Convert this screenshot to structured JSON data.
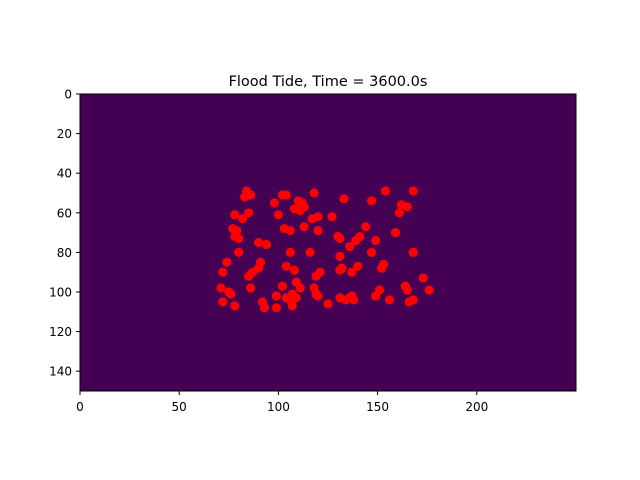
{
  "chart_data": {
    "type": "scatter",
    "title": "Flood Tide, Time = 3600.0s",
    "xlabel": "",
    "ylabel": "",
    "xlim": [
      0,
      250
    ],
    "ylim": [
      150,
      0
    ],
    "y_inverted": true,
    "background_field_color": "#440154",
    "marker_color": "#ff0000",
    "grid": false,
    "x_ticks": [
      0,
      50,
      100,
      150,
      200
    ],
    "y_ticks": [
      0,
      20,
      40,
      60,
      80,
      100,
      120,
      140
    ],
    "points": [
      [
        84,
        49
      ],
      [
        86,
        51
      ],
      [
        83,
        52
      ],
      [
        104,
        51
      ],
      [
        102,
        51
      ],
      [
        118,
        50
      ],
      [
        110,
        54
      ],
      [
        112,
        55
      ],
      [
        113,
        57
      ],
      [
        111,
        59
      ],
      [
        133,
        53
      ],
      [
        147,
        54
      ],
      [
        154,
        49
      ],
      [
        168,
        49
      ],
      [
        98,
        55
      ],
      [
        100,
        61
      ],
      [
        108,
        58
      ],
      [
        85,
        60
      ],
      [
        78,
        61
      ],
      [
        82,
        63
      ],
      [
        117,
        63
      ],
      [
        120,
        62
      ],
      [
        127,
        62
      ],
      [
        162,
        56
      ],
      [
        165,
        57
      ],
      [
        161,
        60
      ],
      [
        77,
        68
      ],
      [
        79,
        69
      ],
      [
        78,
        72
      ],
      [
        80,
        73
      ],
      [
        103,
        68
      ],
      [
        106,
        69
      ],
      [
        113,
        67
      ],
      [
        120,
        69
      ],
      [
        130,
        72
      ],
      [
        131,
        73
      ],
      [
        139,
        74
      ],
      [
        141,
        72
      ],
      [
        144,
        67
      ],
      [
        149,
        74
      ],
      [
        159,
        70
      ],
      [
        90,
        75
      ],
      [
        94,
        76
      ],
      [
        136,
        77
      ],
      [
        147,
        80
      ],
      [
        168,
        80
      ],
      [
        80,
        80
      ],
      [
        106,
        80
      ],
      [
        116,
        80
      ],
      [
        131,
        82
      ],
      [
        74,
        85
      ],
      [
        91,
        85
      ],
      [
        90,
        88
      ],
      [
        87,
        90
      ],
      [
        85,
        92
      ],
      [
        104,
        87
      ],
      [
        108,
        89
      ],
      [
        121,
        90
      ],
      [
        119,
        92
      ],
      [
        132,
        88
      ],
      [
        131,
        89
      ],
      [
        137,
        90
      ],
      [
        140,
        87
      ],
      [
        153,
        86
      ],
      [
        152,
        88
      ],
      [
        71,
        98
      ],
      [
        72,
        90
      ],
      [
        75,
        100
      ],
      [
        76,
        101
      ],
      [
        86,
        98
      ],
      [
        102,
        97
      ],
      [
        109,
        95
      ],
      [
        111,
        98
      ],
      [
        107,
        101
      ],
      [
        104,
        103
      ],
      [
        118,
        98
      ],
      [
        119,
        101
      ],
      [
        120,
        102
      ],
      [
        151,
        99
      ],
      [
        164,
        97
      ],
      [
        165,
        99
      ],
      [
        173,
        93
      ],
      [
        176,
        99
      ],
      [
        72,
        105
      ],
      [
        78,
        107
      ],
      [
        92,
        105
      ],
      [
        93,
        108
      ],
      [
        99,
        102
      ],
      [
        99,
        108
      ],
      [
        106,
        104
      ],
      [
        107,
        107
      ],
      [
        109,
        103
      ],
      [
        125,
        106
      ],
      [
        131,
        103
      ],
      [
        134,
        104
      ],
      [
        136,
        103
      ],
      [
        137,
        102
      ],
      [
        138,
        104
      ],
      [
        149,
        102
      ],
      [
        156,
        104
      ],
      [
        166,
        105
      ],
      [
        168,
        104
      ]
    ]
  }
}
